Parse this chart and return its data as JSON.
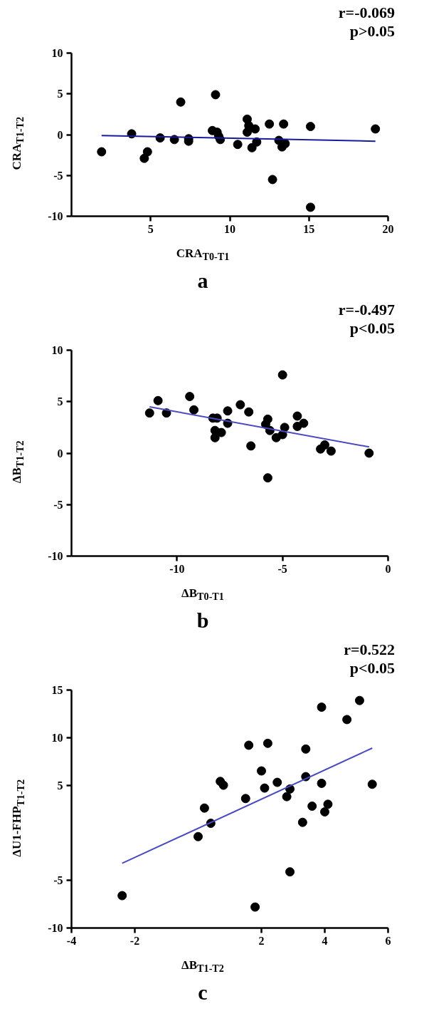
{
  "chart_data": [
    {
      "type": "scatter",
      "title": "a",
      "xlabel": "CRA$_{T0-T1}$",
      "ylabel": "CRA$_{T1-T2}$",
      "annotations": [
        "r=-0.069",
        "p>0.05"
      ],
      "xlim": [
        0,
        20
      ],
      "ylim": [
        -10,
        10
      ],
      "xticks": [
        5,
        10,
        15,
        20
      ],
      "yticks": [
        -10,
        -5,
        0,
        5,
        10
      ],
      "grid": false,
      "series": [
        {
          "marker": "circle",
          "color": "#000000",
          "x": [
            1.9,
            3.8,
            4.6,
            4.8,
            5.6,
            6.5,
            6.9,
            7.4,
            7.4,
            8.9,
            9.1,
            9.2,
            9.3,
            9.4,
            10.5,
            11.1,
            11.2,
            11.1,
            11.4,
            11.6,
            11.7,
            12.5,
            12.7,
            13.1,
            13.3,
            13.4,
            13.5,
            15.1,
            15.1,
            19.2
          ],
          "values": [
            -2.1,
            0.1,
            -2.9,
            -2.1,
            -0.4,
            -0.6,
            4.0,
            -0.5,
            -0.8,
            0.5,
            4.9,
            0.3,
            -0.2,
            -0.6,
            -1.2,
            1.9,
            1.1,
            0.3,
            -1.6,
            0.7,
            -0.9,
            1.3,
            -5.5,
            -0.7,
            -1.5,
            1.3,
            -1.1,
            1.0,
            -8.9,
            0.7
          ]
        },
        {
          "type": "line",
          "color": "#1a1a9e",
          "x": [
            1.9,
            19.2
          ],
          "values": [
            -0.1,
            -0.8
          ]
        }
      ]
    },
    {
      "type": "scatter",
      "title": "b",
      "xlabel": "ΔB$_{T0-T1}$",
      "ylabel": "ΔB$_{T1-T2}$",
      "annotations": [
        "r=-0.497",
        "p<0.05"
      ],
      "xlim": [
        -15,
        0
      ],
      "ylim": [
        -10,
        10
      ],
      "xticks": [
        -10,
        -5,
        0
      ],
      "yticks": [
        -10,
        -5,
        0,
        5,
        10
      ],
      "grid": false,
      "series": [
        {
          "marker": "circle",
          "color": "#000000",
          "x": [
            -11.3,
            -10.9,
            -10.5,
            -9.4,
            -9.2,
            -8.3,
            -8.1,
            -8.2,
            -8.2,
            -7.9,
            -7.6,
            -7.6,
            -7.0,
            -6.6,
            -6.5,
            -5.7,
            -5.8,
            -5.6,
            -5.7,
            -5.3,
            -5.0,
            -5.0,
            -4.9,
            -4.3,
            -4.3,
            -4.0,
            -3.2,
            -3.0,
            -2.7,
            -0.9
          ],
          "values": [
            3.9,
            5.1,
            3.9,
            5.5,
            4.2,
            3.4,
            3.4,
            2.2,
            1.5,
            2.0,
            4.1,
            2.9,
            4.7,
            4.0,
            0.7,
            3.3,
            2.8,
            2.2,
            -2.4,
            1.5,
            7.6,
            1.8,
            2.5,
            3.6,
            2.6,
            2.9,
            0.4,
            0.8,
            0.2,
            0.0
          ]
        },
        {
          "type": "line",
          "color": "#4a4ac0",
          "x": [
            -11.3,
            -0.9
          ],
          "values": [
            4.5,
            0.6
          ]
        }
      ]
    },
    {
      "type": "scatter",
      "title": "c",
      "xlabel": "ΔB$_{T1-T2}$",
      "ylabel": "ΔU1-FHP$_{T1-T2}$",
      "annotations": [
        "r=0.522",
        "p<0.05"
      ],
      "xlim": [
        -4,
        6
      ],
      "ylim": [
        -10,
        15
      ],
      "xticks": [
        -4,
        -2,
        2,
        4,
        6
      ],
      "yticks": [
        -10,
        -5,
        5,
        10,
        15
      ],
      "grid": false,
      "series": [
        {
          "marker": "circle",
          "color": "#000000",
          "x": [
            -2.4,
            0.0,
            0.2,
            0.4,
            0.7,
            0.8,
            1.5,
            1.6,
            1.8,
            2.0,
            2.1,
            2.2,
            2.5,
            2.8,
            2.9,
            2.9,
            3.3,
            3.4,
            3.4,
            3.6,
            3.9,
            3.9,
            4.0,
            4.1,
            4.7,
            5.1,
            5.5
          ],
          "values": [
            -6.6,
            -0.4,
            2.6,
            1.0,
            5.4,
            5.0,
            3.6,
            9.2,
            -7.8,
            6.5,
            4.7,
            9.4,
            5.3,
            3.8,
            4.6,
            -4.1,
            1.1,
            8.8,
            5.9,
            2.8,
            13.2,
            5.2,
            2.2,
            3.0,
            11.9,
            13.9,
            5.1
          ]
        },
        {
          "type": "line",
          "color": "#4a4ac0",
          "x": [
            -2.4,
            5.5
          ],
          "values": [
            -3.2,
            8.9
          ]
        }
      ]
    }
  ]
}
